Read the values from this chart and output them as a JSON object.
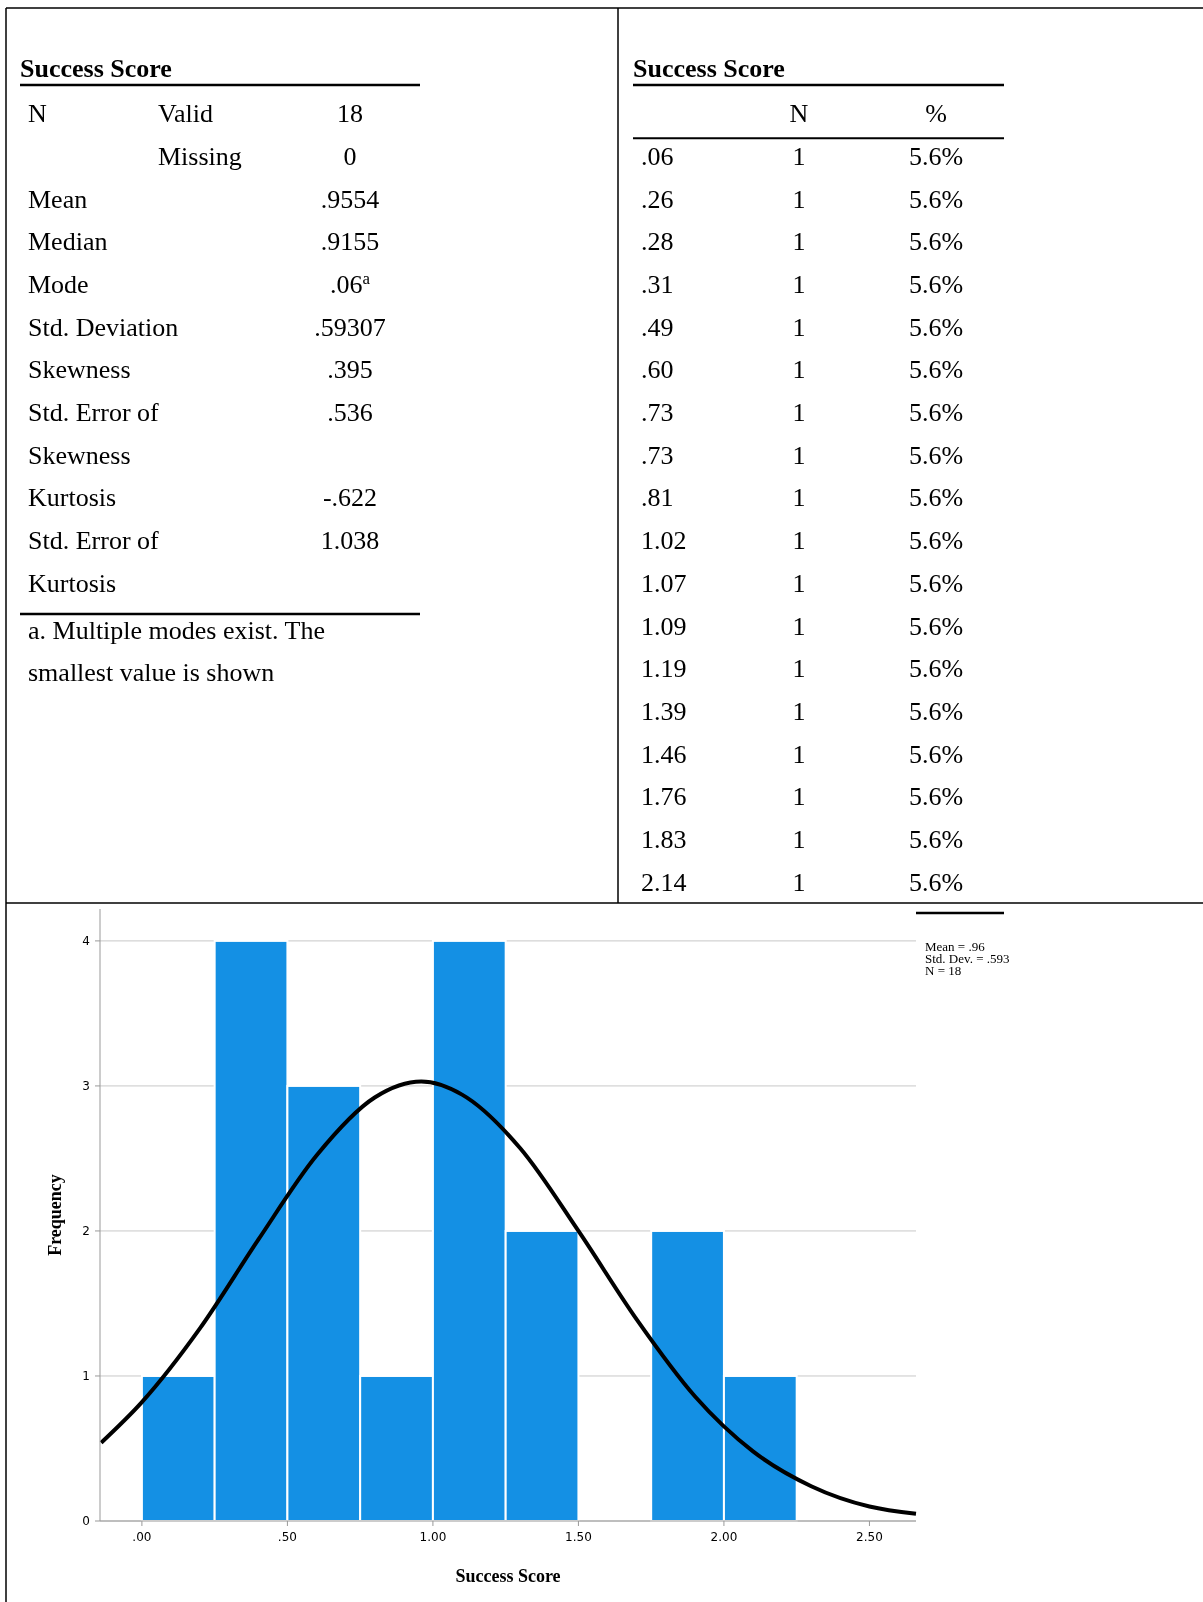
{
  "chart_data": [
    {
      "type": "other",
      "title": "Success Score",
      "annotations": [
        "N\tValid\t18",
        "\tMissing\t0",
        "Mean\t\t.9554",
        "Median\t\t.9155",
        "Mode\t\t.06$^{a}$",
        "Std. Deviation\t\t.59307",
        "Skewness\t\t.395",
        "Std. Error of Skewness\t\t.536",
        "Kurtosis\t\t-.622",
        "Std. Error of Kurtosis\t\t1.038",
        "a. Multiple modes exist. The smallest value is shown"
      ]
    },
    {
      "type": "other",
      "title": "Success Score",
      "annotations": [
        "\tN\t%",
        ".06\t1\t5.6%",
        ".26\t1\t5.6%",
        ".28\t1\t5.6%",
        ".31\t1\t5.6%",
        ".49\t1\t5.6%",
        ".60\t1\t5.6%",
        ".73\t1\t5.6%",
        ".73\t1\t5.6%",
        ".81\t1\t5.6%",
        "1.02\t1\t5.6%",
        "1.07\t1\t5.6%",
        "1.09\t1\t5.6%",
        "1.19\t1\t5.6%",
        "1.39\t1\t5.6%",
        "1.46\t1\t5.6%",
        "1.76\t1\t5.6%",
        "1.83\t1\t5.6%",
        "2.14\t1\t5.6%"
      ]
    },
    {
      "type": "histogram",
      "xlabel": "Success Score",
      "ylabel": "Frequency",
      "bins": [
        0,
        0.25,
        0.5,
        0.75,
        1,
        1.25,
        1.5,
        1.75,
        2,
        2.25
      ],
      "values": [
        1,
        4,
        3,
        1,
        4,
        2,
        0,
        2,
        1
      ],
      "color": "#1490e4",
      "series": [
        {
          "type": "line",
          "color": "#000000",
          "x": [
            -0.14,
            0,
            0.2,
            0.4,
            0.6,
            0.8,
            0.96,
            1.1,
            1.3,
            1.5,
            1.7,
            1.9,
            2.1,
            2.3,
            2.5,
            2.66
          ],
          "values": [
            0.54,
            0.82,
            1.33,
            1.94,
            2.52,
            2.92,
            3.03,
            2.94,
            2.57,
            2.0,
            1.39,
            0.86,
            0.48,
            0.24,
            0.1,
            0.05
          ]
        }
      ],
      "xlim": [
        -0.144,
        2.66
      ],
      "ylim": [
        0,
        4.22
      ],
      "xticks": [
        {
          "value": 0,
          "label": ".00"
        },
        {
          "value": 0.5,
          "label": ".50"
        },
        {
          "value": 1,
          "label": "1.00"
        },
        {
          "value": 1.5,
          "label": "1.50"
        },
        {
          "value": 2,
          "label": "2.00"
        },
        {
          "value": 2.5,
          "label": "2.50"
        }
      ],
      "yticks": [
        0,
        1,
        2,
        3,
        4
      ],
      "grid": "y",
      "annotations": [
        "Mean = .96",
        "Std. Dev. = .593",
        "N = 18"
      ]
    }
  ]
}
